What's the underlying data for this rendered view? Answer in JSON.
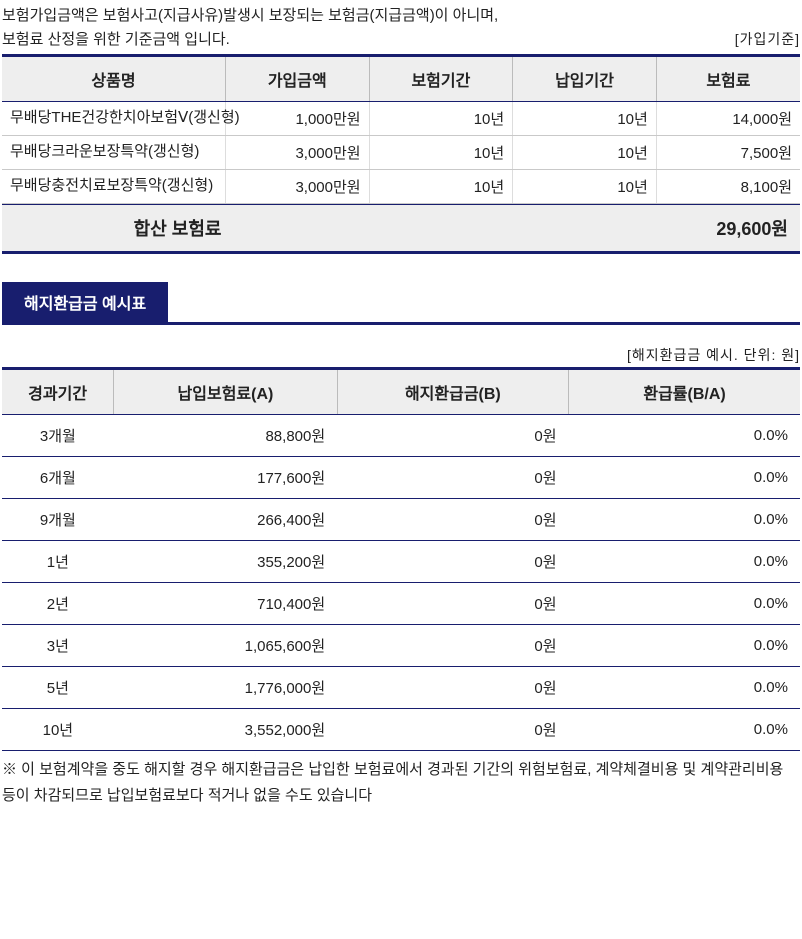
{
  "colors": {
    "accent": "#181e6e",
    "header_bg": "#eeeeee",
    "row_border": "#c9c9c9",
    "text": "#222222",
    "background": "#ffffff"
  },
  "intro": {
    "line1": "보험가입금액은 보험사고(지급사유)발생시 보장되는 보험금(지급금액)이 아니며,",
    "line2": "보험료 산정을 위한 기준금액 입니다.",
    "unit": "[가입기준]"
  },
  "product_table": {
    "columns": [
      "상품명",
      "가입금액",
      "보험기간",
      "납입기간",
      "보험료"
    ],
    "col_widths_pct": [
      28,
      18,
      18,
      18,
      18
    ],
    "rows": [
      {
        "name": "무배당THE건강한치아보험Ⅴ(갱신형)",
        "amount": "1,000만원",
        "period": "10년",
        "pay_period": "10년",
        "premium": "14,000원"
      },
      {
        "name": "무배당크라운보장특약(갱신형)",
        "amount": "3,000만원",
        "period": "10년",
        "pay_period": "10년",
        "premium": "7,500원"
      },
      {
        "name": "무배당충전치료보장특약(갱신형)",
        "amount": "3,000만원",
        "period": "10년",
        "pay_period": "10년",
        "premium": "8,100원"
      }
    ],
    "total_label": "합산 보험료",
    "total_value": "29,600원"
  },
  "section_tab": "해지환급금 예시표",
  "refund_unit": "[해지환급금 예시. 단위: 원]",
  "refund_table": {
    "columns": [
      "경과기간",
      "납입보험료(A)",
      "해지환급금(B)",
      "환급률(B/A)"
    ],
    "col_widths_pct": [
      14,
      28,
      29,
      29
    ],
    "rows": [
      {
        "period": "3개월",
        "paid": "88,800원",
        "refund": "0원",
        "rate": "0.0%"
      },
      {
        "period": "6개월",
        "paid": "177,600원",
        "refund": "0원",
        "rate": "0.0%"
      },
      {
        "period": "9개월",
        "paid": "266,400원",
        "refund": "0원",
        "rate": "0.0%"
      },
      {
        "period": "1년",
        "paid": "355,200원",
        "refund": "0원",
        "rate": "0.0%"
      },
      {
        "period": "2년",
        "paid": "710,400원",
        "refund": "0원",
        "rate": "0.0%"
      },
      {
        "period": "3년",
        "paid": "1,065,600원",
        "refund": "0원",
        "rate": "0.0%"
      },
      {
        "period": "5년",
        "paid": "1,776,000원",
        "refund": "0원",
        "rate": "0.0%"
      },
      {
        "period": "10년",
        "paid": "3,552,000원",
        "refund": "0원",
        "rate": "0.0%"
      }
    ]
  },
  "footnote": "※ 이 보험계약을 중도 해지할 경우 해지환급금은 납입한 보험료에서 경과된 기간의 위험보험료, 계약체결비용 및 계약관리비용 등이 차감되므로 납입보험료보다 적거나 없을 수도 있습니다"
}
